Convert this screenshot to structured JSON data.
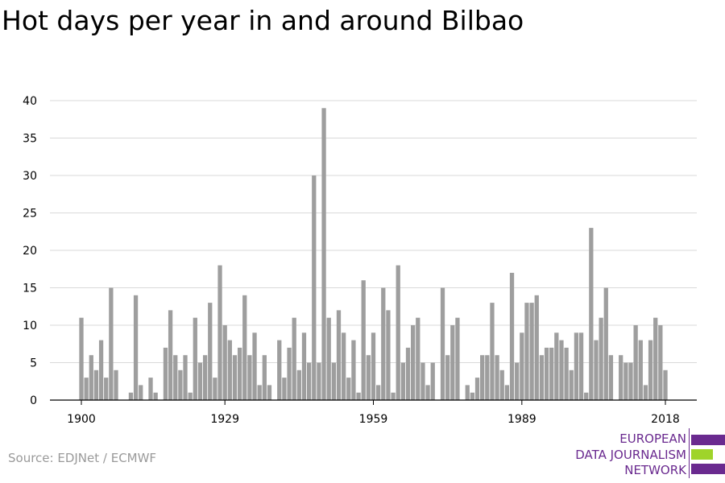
{
  "header": {
    "title": "Hot days per year in and around Bilbao"
  },
  "footer": {
    "source": "Source: EDJNet / ECMWF"
  },
  "logo": {
    "line1": "EUROPEAN",
    "line2": "DATA JOURNALISM",
    "line3": "NETWORK",
    "colors": {
      "primary": "#6a2a8f",
      "accent": "#9fd42a"
    }
  },
  "colors": {
    "bar": "#9e9e9e",
    "grid": "#d9d9d9",
    "axis": "#000000"
  },
  "chart_data": {
    "type": "bar",
    "title": "Hot days per year in and around Bilbao",
    "xlabel": "",
    "ylabel": "",
    "ylim": [
      0,
      40
    ],
    "yticks": [
      0,
      5,
      10,
      15,
      20,
      25,
      30,
      35,
      40
    ],
    "xticks": [
      1900,
      1929,
      1959,
      1989,
      2018
    ],
    "grid": true,
    "x": [
      1900,
      1901,
      1902,
      1903,
      1904,
      1905,
      1906,
      1907,
      1908,
      1909,
      1910,
      1911,
      1912,
      1913,
      1914,
      1915,
      1916,
      1917,
      1918,
      1919,
      1920,
      1921,
      1922,
      1923,
      1924,
      1925,
      1926,
      1927,
      1928,
      1929,
      1930,
      1931,
      1932,
      1933,
      1934,
      1935,
      1936,
      1937,
      1938,
      1939,
      1940,
      1941,
      1942,
      1943,
      1944,
      1945,
      1946,
      1947,
      1948,
      1949,
      1950,
      1951,
      1952,
      1953,
      1954,
      1955,
      1956,
      1957,
      1958,
      1959,
      1960,
      1961,
      1962,
      1963,
      1964,
      1965,
      1966,
      1967,
      1968,
      1969,
      1970,
      1971,
      1972,
      1973,
      1974,
      1975,
      1976,
      1977,
      1978,
      1979,
      1980,
      1981,
      1982,
      1983,
      1984,
      1985,
      1986,
      1987,
      1988,
      1989,
      1990,
      1991,
      1992,
      1993,
      1994,
      1995,
      1996,
      1997,
      1998,
      1999,
      2000,
      2001,
      2002,
      2003,
      2004,
      2005,
      2006,
      2007,
      2008,
      2009,
      2010,
      2011,
      2012,
      2013,
      2014,
      2015,
      2016,
      2017,
      2018
    ],
    "values": [
      11,
      3,
      6,
      4,
      8,
      3,
      15,
      4,
      0,
      0,
      1,
      14,
      2,
      0,
      3,
      1,
      0,
      7,
      12,
      6,
      4,
      6,
      1,
      11,
      5,
      6,
      13,
      3,
      18,
      10,
      8,
      6,
      7,
      14,
      6,
      9,
      2,
      6,
      2,
      0,
      8,
      3,
      7,
      11,
      4,
      9,
      5,
      30,
      5,
      39,
      11,
      5,
      12,
      9,
      3,
      8,
      1,
      16,
      6,
      9,
      2,
      15,
      12,
      1,
      18,
      5,
      7,
      10,
      11,
      5,
      2,
      5,
      0,
      15,
      6,
      10,
      11,
      0,
      2,
      1,
      3,
      6,
      6,
      13,
      6,
      4,
      2,
      17,
      5,
      9,
      13,
      13,
      14,
      6,
      7,
      7,
      9,
      8,
      7,
      4,
      9,
      9,
      1,
      23,
      8,
      11,
      15,
      6,
      0,
      6,
      5,
      5,
      10,
      8,
      2,
      8,
      11,
      10,
      4
    ]
  }
}
